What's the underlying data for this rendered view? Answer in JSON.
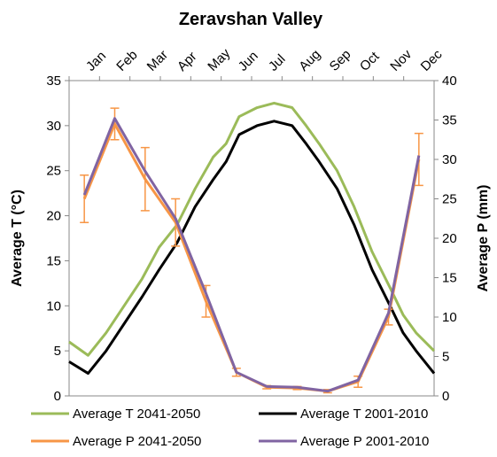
{
  "chart_data": {
    "type": "line",
    "title": "Zeravshan Valley",
    "categories": [
      "Jan",
      "Feb",
      "Mar",
      "Apr",
      "May",
      "Jun",
      "Jul",
      "Aug",
      "Sep",
      "Oct",
      "Nov",
      "Dec"
    ],
    "xlim": [
      0,
      365
    ],
    "y_label": "Average T (°C)",
    "y2_label": "Average P (mm)",
    "ylim": [
      0,
      35
    ],
    "yticks": [
      0,
      5,
      10,
      15,
      20,
      25,
      30,
      35
    ],
    "y2lim": [
      0,
      40
    ],
    "y2ticks": [
      0,
      5,
      10,
      15,
      20,
      25,
      30,
      35,
      40
    ],
    "grid": false,
    "legend": "bottom",
    "series": [
      {
        "name": "Average T 2041-2050",
        "color": "#9bbb59",
        "axis": "y",
        "x": [
          0,
          19,
          37,
          55,
          73,
          90,
          108,
          126,
          144,
          157,
          170,
          188,
          205,
          223,
          237,
          250,
          268,
          285,
          303,
          321,
          334,
          347,
          365
        ],
        "values": [
          6,
          4.5,
          7,
          10,
          13,
          16.5,
          19,
          23,
          26.5,
          28,
          31,
          32,
          32.5,
          32,
          30,
          28,
          25,
          21,
          16,
          12,
          9,
          7,
          5
        ]
      },
      {
        "name": "Average T 2001-2010",
        "color": "#000000",
        "axis": "y",
        "x": [
          0,
          19,
          37,
          55,
          73,
          90,
          108,
          126,
          144,
          157,
          170,
          188,
          205,
          223,
          237,
          250,
          268,
          285,
          303,
          321,
          334,
          347,
          365
        ],
        "values": [
          3.8,
          2.5,
          5,
          8,
          11,
          14,
          17,
          21,
          24,
          26,
          29,
          30,
          30.5,
          30,
          28,
          26,
          23,
          19,
          14,
          10,
          7,
          5,
          2.5
        ]
      },
      {
        "name": "Average P 2041-2050",
        "color": "#f79646",
        "axis": "y2",
        "values": [
          25,
          34.5,
          27.5,
          22,
          12,
          3,
          1.1,
          1,
          0.6,
          1.8,
          10,
          30
        ],
        "errors": [
          3,
          2,
          4,
          3,
          2,
          0.5,
          0.2,
          0.2,
          0.2,
          0.7,
          1,
          3.3
        ]
      },
      {
        "name": "Average P 2001-2010",
        "color": "#8064a2",
        "axis": "y2",
        "values": [
          25.5,
          35.2,
          28.5,
          22.5,
          13,
          3,
          1.2,
          1.1,
          0.6,
          2,
          10.5,
          30.5
        ]
      }
    ]
  }
}
